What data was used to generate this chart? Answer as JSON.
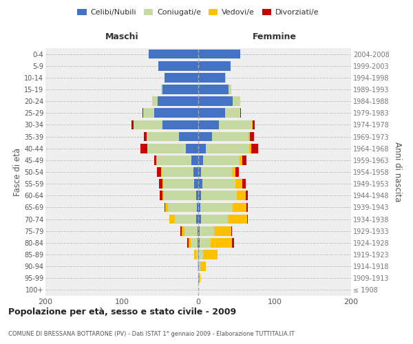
{
  "age_groups": [
    "100+",
    "95-99",
    "90-94",
    "85-89",
    "80-84",
    "75-79",
    "70-74",
    "65-69",
    "60-64",
    "55-59",
    "50-54",
    "45-49",
    "40-44",
    "35-39",
    "30-34",
    "25-29",
    "20-24",
    "15-19",
    "10-14",
    "5-9",
    "0-4"
  ],
  "birth_years": [
    "≤ 1908",
    "1909-1913",
    "1914-1918",
    "1919-1923",
    "1924-1928",
    "1929-1933",
    "1934-1938",
    "1939-1943",
    "1944-1948",
    "1949-1953",
    "1954-1958",
    "1959-1963",
    "1964-1968",
    "1969-1973",
    "1974-1978",
    "1979-1983",
    "1984-1988",
    "1989-1993",
    "1994-1998",
    "1999-2003",
    "2004-2008"
  ],
  "maschi": {
    "celibi": [
      0,
      0,
      0,
      0,
      1,
      1,
      3,
      2,
      3,
      5,
      6,
      9,
      16,
      25,
      47,
      58,
      53,
      47,
      44,
      52,
      65
    ],
    "coniugati": [
      0,
      0,
      1,
      3,
      9,
      17,
      28,
      38,
      42,
      41,
      42,
      46,
      51,
      43,
      38,
      14,
      7,
      2,
      0,
      0,
      0
    ],
    "vedovi": [
      0,
      0,
      0,
      2,
      3,
      4,
      7,
      3,
      2,
      1,
      1,
      0,
      0,
      0,
      0,
      0,
      0,
      0,
      0,
      0,
      0
    ],
    "divorziati": [
      0,
      0,
      0,
      0,
      1,
      1,
      0,
      1,
      3,
      4,
      5,
      3,
      9,
      3,
      2,
      1,
      0,
      0,
      0,
      0,
      0
    ]
  },
  "femmine": {
    "nubili": [
      0,
      1,
      1,
      1,
      2,
      2,
      4,
      3,
      4,
      5,
      4,
      6,
      10,
      18,
      27,
      35,
      45,
      40,
      35,
      42,
      55
    ],
    "coniugate": [
      0,
      0,
      2,
      5,
      14,
      19,
      35,
      42,
      46,
      44,
      40,
      48,
      57,
      48,
      43,
      20,
      10,
      3,
      1,
      0,
      0
    ],
    "vedove": [
      0,
      2,
      7,
      19,
      28,
      22,
      25,
      18,
      12,
      9,
      5,
      4,
      2,
      2,
      1,
      0,
      0,
      0,
      0,
      0,
      0
    ],
    "divorziate": [
      0,
      0,
      0,
      0,
      3,
      1,
      1,
      2,
      3,
      4,
      4,
      5,
      9,
      5,
      3,
      1,
      0,
      0,
      0,
      0,
      0
    ]
  },
  "colors": {
    "celibi": "#4472c4",
    "coniugati": "#c5d9a0",
    "vedovi": "#ffc000",
    "divorziati": "#cc0000"
  },
  "legend_labels": [
    "Celibi/Nubili",
    "Coniugati/e",
    "Vedovi/e",
    "Divorziati/e"
  ],
  "title": "Popolazione per età, sesso e stato civile - 2009",
  "subtitle": "COMUNE DI BRESSANA BOTTARONE (PV) - Dati ISTAT 1° gennaio 2009 - Elaborazione TUTTITALIA.IT",
  "ylabel_left": "Fasce di età",
  "ylabel_right": "Anni di nascita",
  "xlim": 200,
  "background_color": "#ffffff",
  "grid_color": "#cccccc",
  "maschi_label": "Maschi",
  "femmine_label": "Femmine"
}
